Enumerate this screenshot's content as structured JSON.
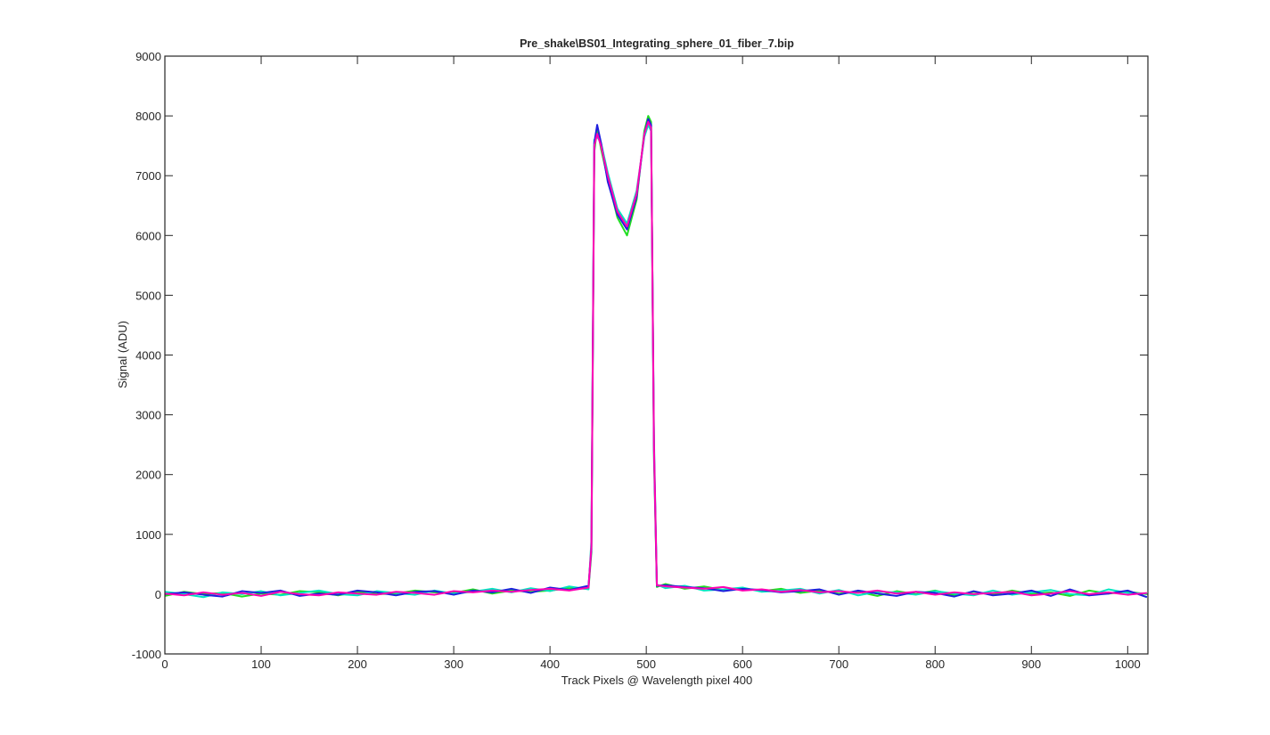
{
  "chart_data": {
    "type": "line",
    "title": "Pre_shake\\BS01_Integrating_sphere_01_fiber_7.bip",
    "x_label": "Track Pixels @ Wavelength pixel 400",
    "y_label": "Signal (ADU)",
    "xlim": [
      0,
      1021
    ],
    "ylim": [
      -1000,
      9000
    ],
    "xticks": [
      0,
      100,
      200,
      300,
      400,
      500,
      600,
      700,
      800,
      900,
      1000
    ],
    "yticks": [
      -1000,
      0,
      1000,
      2000,
      3000,
      4000,
      5000,
      6000,
      7000,
      8000,
      9000
    ],
    "x": [
      0,
      20,
      40,
      60,
      80,
      100,
      120,
      140,
      160,
      180,
      200,
      220,
      240,
      260,
      280,
      300,
      320,
      340,
      360,
      380,
      400,
      420,
      440,
      443,
      446,
      449,
      453,
      460,
      470,
      480,
      490,
      498,
      502,
      505,
      508,
      511,
      520,
      540,
      560,
      580,
      600,
      620,
      640,
      660,
      680,
      700,
      720,
      740,
      760,
      780,
      800,
      820,
      840,
      860,
      880,
      900,
      920,
      940,
      960,
      980,
      1000,
      1020
    ],
    "series": [
      {
        "color": "#22dd22",
        "values": [
          -30,
          40,
          0,
          20,
          -40,
          10,
          -10,
          50,
          30,
          -20,
          40,
          0,
          10,
          60,
          30,
          20,
          80,
          10,
          60,
          40,
          60,
          100,
          90,
          700,
          7400,
          7800,
          7450,
          6950,
          6300,
          6000,
          6600,
          7750,
          8000,
          7900,
          2300,
          120,
          170,
          90,
          130,
          70,
          100,
          50,
          90,
          20,
          60,
          10,
          40,
          -30,
          50,
          0,
          60,
          -20,
          40,
          -10,
          60,
          0,
          30,
          -30,
          60,
          10,
          40,
          0
        ]
      },
      {
        "color": "#00e5c0",
        "values": [
          40,
          0,
          -50,
          30,
          0,
          50,
          -20,
          20,
          60,
          0,
          -20,
          50,
          20,
          -10,
          60,
          10,
          40,
          90,
          30,
          100,
          50,
          130,
          80,
          900,
          7600,
          7650,
          7550,
          7050,
          6450,
          6200,
          6750,
          7650,
          7850,
          7750,
          2600,
          160,
          100,
          140,
          60,
          80,
          110,
          40,
          60,
          90,
          10,
          70,
          -20,
          40,
          30,
          -10,
          50,
          10,
          -20,
          60,
          -10,
          30,
          70,
          0,
          -20,
          80,
          20,
          10
        ]
      },
      {
        "color": "#1f1fdd",
        "values": [
          0,
          30,
          -10,
          -40,
          50,
          20,
          60,
          -30,
          10,
          -10,
          60,
          30,
          -20,
          40,
          50,
          -10,
          60,
          30,
          90,
          20,
          110,
          70,
          140,
          750,
          7550,
          7850,
          7550,
          6900,
          6350,
          6100,
          6650,
          7700,
          7950,
          7850,
          2400,
          140,
          150,
          120,
          100,
          50,
          90,
          70,
          30,
          50,
          80,
          -10,
          60,
          10,
          -30,
          40,
          20,
          -40,
          50,
          -20,
          10,
          60,
          -30,
          80,
          -20,
          10,
          60,
          -50
        ]
      },
      {
        "color": "#ff00b4",
        "values": [
          10,
          -20,
          30,
          -10,
          20,
          -30,
          40,
          0,
          -20,
          30,
          10,
          -10,
          40,
          20,
          -10,
          50,
          30,
          60,
          40,
          70,
          90,
          60,
          110,
          800,
          7500,
          7700,
          7500,
          7000,
          6400,
          6150,
          6700,
          7700,
          7900,
          7800,
          2500,
          150,
          130,
          110,
          90,
          120,
          60,
          80,
          40,
          70,
          30,
          50,
          20,
          60,
          10,
          40,
          -10,
          30,
          0,
          20,
          40,
          -20,
          10,
          50,
          0,
          30,
          -10,
          20
        ]
      }
    ]
  }
}
